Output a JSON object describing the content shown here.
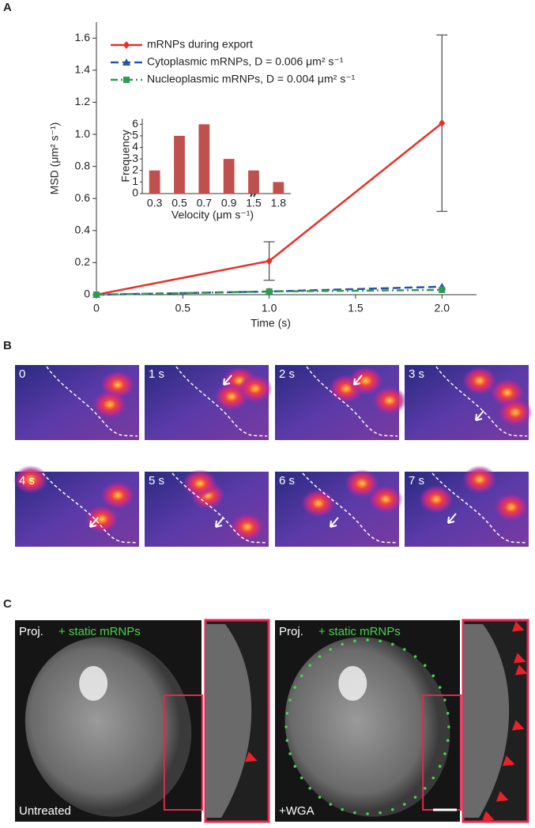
{
  "panel_labels": [
    "A",
    "B",
    "C"
  ],
  "chart_data": [
    {
      "type": "line",
      "xlabel": "Time (s)",
      "ylabel": "MSD (μm² s⁻¹)",
      "x": [
        0,
        1.0,
        2.0
      ],
      "series": [
        {
          "name": "mRNPs during export",
          "color": "#e8302a",
          "linestyle": "solid",
          "marker": "diamond",
          "values": [
            0,
            0.21,
            1.07
          ],
          "errors": [
            null,
            0.12,
            0.55
          ]
        },
        {
          "name": "Cytoplasmic mRNPs, D = 0.006 μm² s⁻¹",
          "color": "#2a52a8",
          "linestyle": "dashed",
          "marker": "triangle",
          "values": [
            0,
            0.02,
            0.05
          ]
        },
        {
          "name": "Nucleoplasmic mRNPs, D = 0.004 μm² s⁻¹",
          "color": "#2e9a55",
          "linestyle": "dashdot",
          "marker": "square",
          "values": [
            0,
            0.02,
            0.03
          ]
        }
      ],
      "xlim": [
        0,
        2.2
      ],
      "xticks": [
        0,
        0.5,
        {
          "value": 1,
          "label": "1.0"
        },
        1.5,
        {
          "value": 2,
          "label": "2.0"
        }
      ],
      "ylim": [
        0,
        1.7
      ],
      "yticks": [
        0,
        0.2,
        0.4,
        0.6,
        0.8,
        {
          "value": 1,
          "label": "1.0"
        },
        1.2,
        1.4,
        1.6
      ],
      "legend": "upper left",
      "grid": false
    },
    {
      "type": "bar",
      "xlabel": "Velocity (μm s⁻¹)",
      "ylabel": "Frequency",
      "color": "#c0504d",
      "categories": [
        "0.3",
        "0.5",
        "0.7",
        "0.9",
        "1.5",
        "1.8"
      ],
      "values": [
        2,
        5,
        6,
        3,
        2,
        1
      ],
      "ylim": [
        0,
        6.5
      ],
      "yticks": [
        0,
        1,
        2,
        3,
        4,
        5,
        6
      ]
    }
  ],
  "panel_b": {
    "frames": [
      "0",
      "1 s",
      "2 s",
      "3 s",
      "4 s",
      "5 s",
      "6 s",
      "7 s"
    ]
  },
  "panel_c": {
    "left": {
      "proj": "Proj.",
      "static": "+ static mRNPs",
      "condition": "Untreated"
    },
    "right": {
      "proj": "Proj.",
      "static": "+ static mRNPs",
      "condition": "+WGA"
    }
  }
}
